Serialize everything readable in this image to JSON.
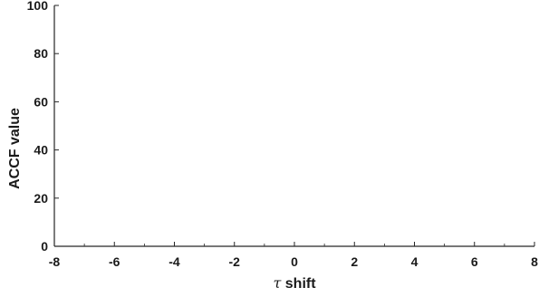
{
  "chart_data": {
    "type": "line",
    "title": "",
    "xlabel_symbol": "τ",
    "xlabel_text": "shift",
    "ylabel": "ACCF value",
    "xlim": [
      -8,
      8
    ],
    "ylim": [
      0,
      100
    ],
    "xticks": [
      -8,
      -6,
      -4,
      -2,
      0,
      2,
      4,
      6,
      8
    ],
    "yticks": [
      0,
      20,
      40,
      60,
      80,
      100
    ],
    "grid": false,
    "series": []
  },
  "colors": {
    "axis": "#262626",
    "text": "#1a1a1a",
    "background": "#ffffff"
  }
}
